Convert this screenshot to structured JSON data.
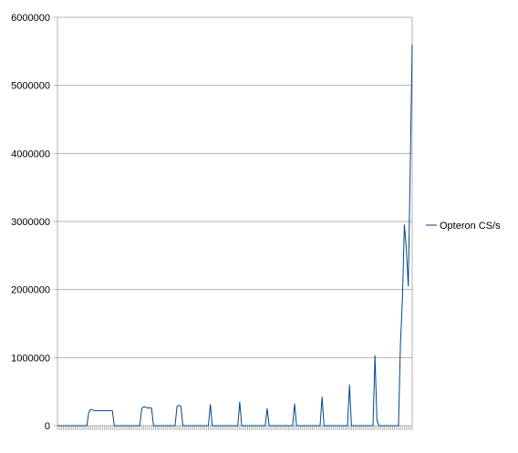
{
  "chart_data": {
    "type": "line",
    "title": "",
    "xlabel": "",
    "ylabel": "",
    "ylim": [
      0,
      6000000
    ],
    "yticks": [
      0,
      1000000,
      2000000,
      3000000,
      4000000,
      5000000,
      6000000
    ],
    "ytick_labels": [
      "0",
      "1000000",
      "2000000",
      "3000000",
      "4000000",
      "5000000",
      "6000000"
    ],
    "grid": "horizontal",
    "legend_position": "right",
    "series": [
      {
        "name": "Opteron CS/s",
        "color": "#004586",
        "values": [
          0,
          0,
          0,
          0,
          0,
          0,
          0,
          0,
          0,
          0,
          0,
          0,
          0,
          0,
          0,
          0,
          200000,
          240000,
          230000,
          220000,
          220000,
          220000,
          220000,
          220000,
          220000,
          220000,
          220000,
          220000,
          220000,
          0,
          0,
          0,
          0,
          0,
          0,
          0,
          0,
          0,
          0,
          0,
          0,
          0,
          0,
          250000,
          280000,
          270000,
          260000,
          260000,
          260000,
          0,
          0,
          0,
          0,
          0,
          0,
          0,
          0,
          0,
          0,
          0,
          0,
          280000,
          300000,
          280000,
          0,
          0,
          0,
          0,
          0,
          0,
          0,
          0,
          0,
          0,
          0,
          0,
          0,
          0,
          310000,
          0,
          0,
          0,
          0,
          0,
          0,
          0,
          0,
          0,
          0,
          0,
          0,
          0,
          0,
          350000,
          0,
          0,
          0,
          0,
          0,
          0,
          0,
          0,
          0,
          0,
          0,
          0,
          0,
          250000,
          0,
          0,
          0,
          0,
          0,
          0,
          0,
          0,
          0,
          0,
          0,
          0,
          0,
          320000,
          0,
          0,
          0,
          0,
          0,
          0,
          0,
          0,
          0,
          0,
          0,
          0,
          0,
          420000,
          0,
          0,
          0,
          0,
          0,
          0,
          0,
          0,
          0,
          0,
          0,
          0,
          0,
          600000,
          0,
          0,
          0,
          0,
          0,
          0,
          0,
          0,
          0,
          0,
          0,
          0,
          1030000,
          80000,
          0,
          0,
          0,
          0,
          0,
          0,
          0,
          0,
          0,
          0,
          0,
          1200000,
          1850000,
          2950000,
          2600000,
          2050000,
          3800000,
          5600000
        ]
      }
    ]
  }
}
